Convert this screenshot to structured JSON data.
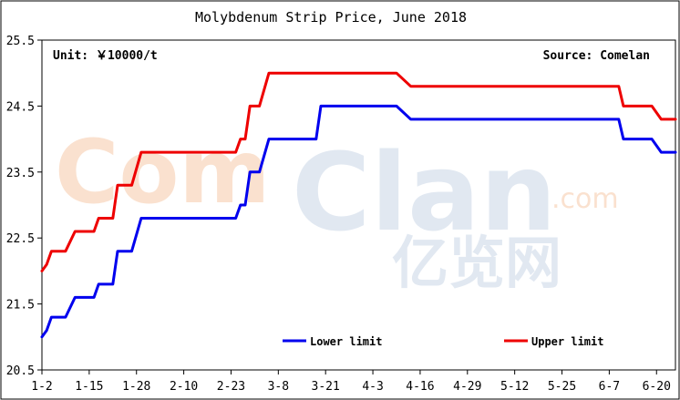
{
  "chart_data": {
    "type": "line",
    "title": "Molybdenum Strip Price, June 2018",
    "unit_label": "Unit: ￥10000/t",
    "source_label": "Source: Comelan",
    "watermark": "ComClan.com 亿览网",
    "ylim": [
      20.5,
      25.5
    ],
    "y_ticks": [
      "25.5",
      "24.5",
      "23.5",
      "22.5",
      "21.5",
      "20.5"
    ],
    "x_range": [
      0,
      134
    ],
    "x_ticks": [
      {
        "label": "1-2",
        "x": 0
      },
      {
        "label": "1-15",
        "x": 10
      },
      {
        "label": "1-28",
        "x": 20
      },
      {
        "label": "2-10",
        "x": 30
      },
      {
        "label": "2-23",
        "x": 40
      },
      {
        "label": "3-8",
        "x": 50
      },
      {
        "label": "3-21",
        "x": 60
      },
      {
        "label": "4-3",
        "x": 70
      },
      {
        "label": "4-16",
        "x": 80
      },
      {
        "label": "4-29",
        "x": 90
      },
      {
        "label": "5-12",
        "x": 100
      },
      {
        "label": "5-25",
        "x": 110
      },
      {
        "label": "6-7",
        "x": 120
      },
      {
        "label": "6-20",
        "x": 130
      }
    ],
    "legend_position": "bottom",
    "grid": false,
    "series": [
      {
        "name": "Lower limit",
        "color": "#0000ee",
        "points": [
          [
            0,
            21.0
          ],
          [
            1,
            21.1
          ],
          [
            2,
            21.3
          ],
          [
            5,
            21.3
          ],
          [
            7,
            21.6
          ],
          [
            11,
            21.6
          ],
          [
            12,
            21.8
          ],
          [
            15,
            21.8
          ],
          [
            16,
            22.3
          ],
          [
            19,
            22.3
          ],
          [
            21,
            22.8
          ],
          [
            41,
            22.8
          ],
          [
            42,
            23.0
          ],
          [
            43,
            23.0
          ],
          [
            44,
            23.5
          ],
          [
            46,
            23.5
          ],
          [
            48,
            24.0
          ],
          [
            58,
            24.0
          ],
          [
            59,
            24.5
          ],
          [
            75,
            24.5
          ],
          [
            78,
            24.3
          ],
          [
            122,
            24.3
          ],
          [
            123,
            24.0
          ],
          [
            129,
            24.0
          ],
          [
            131,
            23.8
          ],
          [
            134,
            23.8
          ]
        ]
      },
      {
        "name": "Upper limit",
        "color": "#ee0000",
        "points": [
          [
            0,
            22.0
          ],
          [
            1,
            22.1
          ],
          [
            2,
            22.3
          ],
          [
            5,
            22.3
          ],
          [
            7,
            22.6
          ],
          [
            11,
            22.6
          ],
          [
            12,
            22.8
          ],
          [
            15,
            22.8
          ],
          [
            16,
            23.3
          ],
          [
            19,
            23.3
          ],
          [
            21,
            23.8
          ],
          [
            41,
            23.8
          ],
          [
            42,
            24.0
          ],
          [
            43,
            24.0
          ],
          [
            44,
            24.5
          ],
          [
            46,
            24.5
          ],
          [
            48,
            25.0
          ],
          [
            75,
            25.0
          ],
          [
            78,
            24.8
          ],
          [
            122,
            24.8
          ],
          [
            123,
            24.5
          ],
          [
            129,
            24.5
          ],
          [
            131,
            24.3
          ],
          [
            134,
            24.3
          ]
        ]
      }
    ]
  }
}
